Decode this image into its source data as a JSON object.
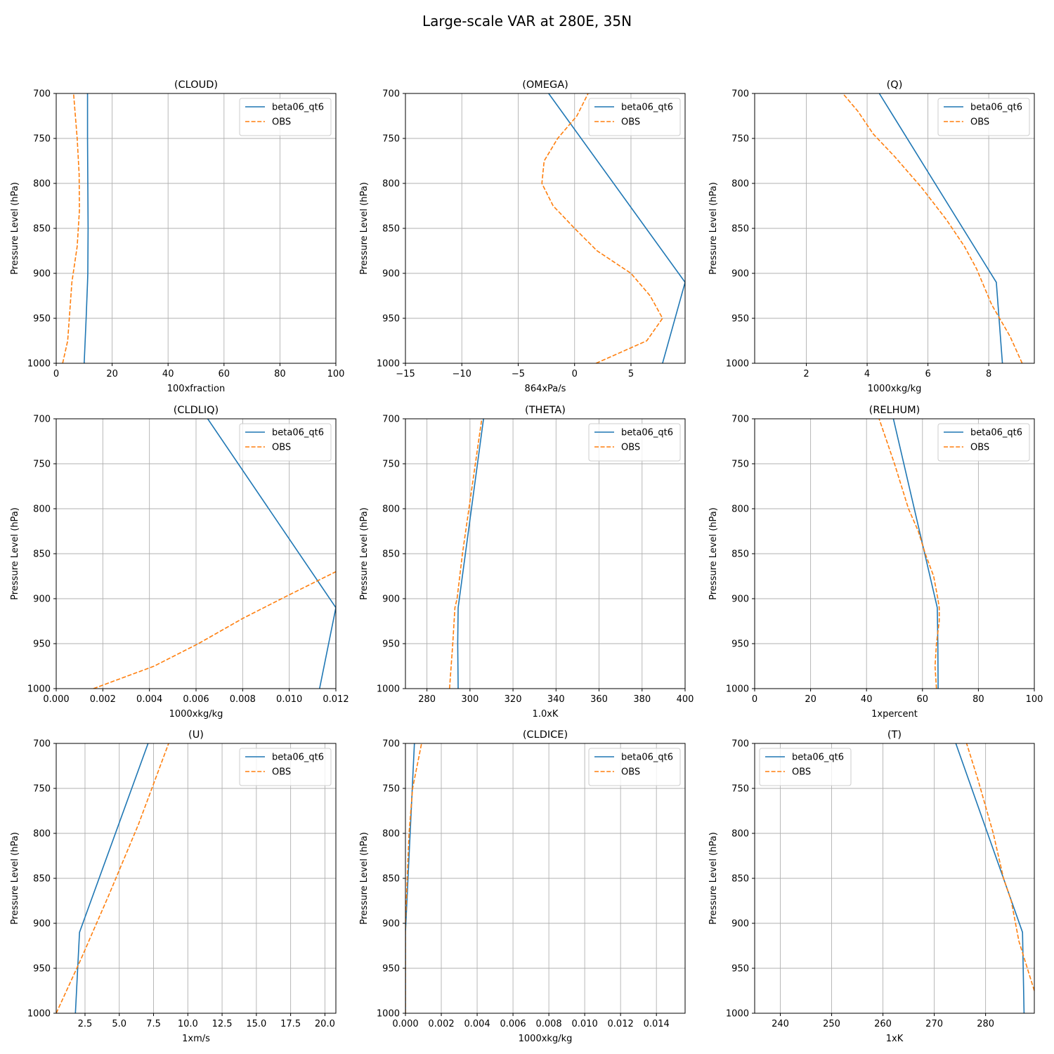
{
  "figure": {
    "title": "Large-scale VAR at 280E, 35N",
    "colors": {
      "model": "#1f77b4",
      "obs": "#ff7f0e",
      "grid": "#b0b0b0"
    }
  },
  "chart_data": [
    {
      "type": "line",
      "title": "(CLOUD)",
      "xlabel": "100xfraction",
      "ylabel": "Pressure Level (hPa)",
      "xlim": [
        0,
        100
      ],
      "ylim": [
        1000,
        700
      ],
      "y_inverted": true,
      "xticks": [
        0,
        20,
        40,
        60,
        80,
        100
      ],
      "xtick_labels": [
        "0",
        "20",
        "40",
        "60",
        "80",
        "100"
      ],
      "yticks": [
        700,
        750,
        800,
        850,
        900,
        950,
        1000
      ],
      "ytick_labels": [
        "700",
        "750",
        "800",
        "850",
        "900",
        "950",
        "1000"
      ],
      "grid": true,
      "legend": "upper right",
      "series": [
        {
          "name": "beta06_qt6",
          "style": "solid",
          "x": [
            10,
            10.7,
            11.2,
            11.3,
            11.4,
            11.3,
            11.2,
            11.2
          ],
          "y": [
            1000,
            950,
            910,
            900,
            850,
            800,
            750,
            700
          ]
        },
        {
          "name": "OBS",
          "style": "dashed",
          "x": [
            2.3,
            4.1,
            5.6,
            7.5,
            8.3,
            8.2,
            7.5,
            6.2
          ],
          "y": [
            1000,
            975,
            910,
            870,
            830,
            790,
            750,
            700
          ]
        }
      ]
    },
    {
      "type": "line",
      "title": "(OMEGA)",
      "xlabel": "864xPa/s",
      "ylabel": "Pressure Level (hPa)",
      "xlim": [
        -15,
        9.8
      ],
      "ylim": [
        1000,
        700
      ],
      "y_inverted": true,
      "xticks": [
        -15,
        -10,
        -5,
        0,
        5
      ],
      "xtick_labels": [
        "−15",
        "−10",
        "−5",
        "0",
        "5"
      ],
      "yticks": [
        700,
        750,
        800,
        850,
        900,
        950,
        1000
      ],
      "ytick_labels": [
        "700",
        "750",
        "800",
        "850",
        "900",
        "950",
        "1000"
      ],
      "grid": true,
      "legend": "upper right",
      "series": [
        {
          "name": "beta06_qt6",
          "style": "solid",
          "x": [
            7.8,
            9.8,
            -2.3
          ],
          "y": [
            1000,
            910,
            700
          ]
        },
        {
          "name": "OBS",
          "style": "dashed",
          "x": [
            1.9,
            6.4,
            7.8,
            6.7,
            5.0,
            2.0,
            0.0,
            -1.9,
            -2.9,
            -2.7,
            -1.5,
            0.2,
            1.2
          ],
          "y": [
            1000,
            975,
            950,
            925,
            900,
            875,
            850,
            825,
            800,
            775,
            750,
            725,
            700
          ]
        }
      ]
    },
    {
      "type": "line",
      "title": "(Q)",
      "xlabel": "1000xkg/kg",
      "ylabel": "Pressure Level (hPa)",
      "xlim": [
        0.3,
        9.5
      ],
      "ylim": [
        1000,
        700
      ],
      "y_inverted": true,
      "xticks": [
        2,
        4,
        6,
        8
      ],
      "xtick_labels": [
        "2",
        "4",
        "6",
        "8"
      ],
      "yticks": [
        700,
        750,
        800,
        850,
        900,
        950,
        1000
      ],
      "ytick_labels": [
        "700",
        "750",
        "800",
        "850",
        "900",
        "950",
        "1000"
      ],
      "grid": true,
      "legend": "upper right",
      "series": [
        {
          "name": "beta06_qt6",
          "style": "solid",
          "x": [
            8.45,
            8.25,
            4.4
          ],
          "y": [
            1000,
            910,
            700
          ]
        },
        {
          "name": "OBS",
          "style": "dashed",
          "x": [
            9.1,
            8.7,
            8.1,
            7.6,
            7.2,
            6.6,
            5.8,
            4.9,
            4.2,
            3.7,
            3.2
          ],
          "y": [
            1000,
            970,
            935,
            895,
            870,
            840,
            805,
            770,
            745,
            720,
            700
          ]
        }
      ]
    },
    {
      "type": "line",
      "title": "(CLDLIQ)",
      "xlabel": "1000xkg/kg",
      "ylabel": "Pressure Level (hPa)",
      "xlim": [
        0.0,
        0.012
      ],
      "ylim": [
        1000,
        700
      ],
      "y_inverted": true,
      "xticks": [
        0.0,
        0.002,
        0.004,
        0.006,
        0.008,
        0.01,
        0.012
      ],
      "xtick_labels": [
        "0.000",
        "0.002",
        "0.004",
        "0.006",
        "0.008",
        "0.010",
        "0.012"
      ],
      "yticks": [
        700,
        750,
        800,
        850,
        900,
        950,
        1000
      ],
      "ytick_labels": [
        "700",
        "750",
        "800",
        "850",
        "900",
        "950",
        "1000"
      ],
      "grid": true,
      "legend": "upper right",
      "series": [
        {
          "name": "beta06_qt6",
          "style": "solid",
          "x": [
            0.0113,
            0.012,
            0.0065
          ],
          "y": [
            1000,
            910,
            700
          ]
        },
        {
          "name": "OBS",
          "style": "dashed",
          "x": [
            0.0016,
            0.0042,
            0.0061,
            0.008,
            0.0099,
            0.012
          ],
          "y": [
            1000,
            975,
            950,
            922,
            897,
            870
          ]
        }
      ]
    },
    {
      "type": "line",
      "title": "(THETA)",
      "xlabel": "1.0xK",
      "ylabel": "Pressure Level (hPa)",
      "xlim": [
        270,
        400
      ],
      "ylim": [
        1000,
        700
      ],
      "y_inverted": true,
      "xticks": [
        280,
        300,
        320,
        340,
        360,
        380,
        400
      ],
      "xtick_labels": [
        "280",
        "300",
        "320",
        "340",
        "360",
        "380",
        "400"
      ],
      "yticks": [
        700,
        750,
        800,
        850,
        900,
        950,
        1000
      ],
      "ytick_labels": [
        "700",
        "750",
        "800",
        "850",
        "900",
        "950",
        "1000"
      ],
      "grid": true,
      "legend": "upper right",
      "series": [
        {
          "name": "beta06_qt6",
          "style": "solid",
          "x": [
            294.5,
            294.3,
            294.5,
            306.3
          ],
          "y": [
            1000,
            950,
            910,
            700
          ]
        },
        {
          "name": "OBS",
          "style": "dashed",
          "x": [
            290.5,
            292.0,
            293.0,
            294.0,
            296.5,
            299.5,
            302.5,
            305.5
          ],
          "y": [
            1000,
            950,
            910,
            900,
            850,
            800,
            750,
            700
          ]
        }
      ]
    },
    {
      "type": "line",
      "title": "(RELHUM)",
      "xlabel": "1xpercent",
      "ylabel": "Pressure Level (hPa)",
      "xlim": [
        0,
        100
      ],
      "ylim": [
        1000,
        700
      ],
      "y_inverted": true,
      "xticks": [
        0,
        20,
        40,
        60,
        80,
        100
      ],
      "xtick_labels": [
        "0",
        "20",
        "40",
        "60",
        "80",
        "100"
      ],
      "yticks": [
        700,
        750,
        800,
        850,
        900,
        950,
        1000
      ],
      "ytick_labels": [
        "700",
        "750",
        "800",
        "850",
        "900",
        "950",
        "1000"
      ],
      "grid": true,
      "legend": "upper right",
      "series": [
        {
          "name": "beta06_qt6",
          "style": "solid",
          "x": [
            65.6,
            65.5,
            65.3,
            49.6
          ],
          "y": [
            1000,
            950,
            910,
            700
          ]
        },
        {
          "name": "OBS",
          "style": "dashed",
          "x": [
            65.0,
            64.5,
            65.0,
            66.0,
            66.0,
            65.5,
            64.0,
            61.0,
            58.5,
            55.0,
            50.0,
            44.5
          ],
          "y": [
            1000,
            975,
            950,
            925,
            910,
            900,
            875,
            850,
            825,
            800,
            750,
            700
          ]
        }
      ]
    },
    {
      "type": "line",
      "title": "(U)",
      "xlabel": "1xm/s",
      "ylabel": "Pressure Level (hPa)",
      "xlim": [
        0.4,
        20.8
      ],
      "ylim": [
        1000,
        700
      ],
      "y_inverted": true,
      "xticks": [
        2.5,
        5.0,
        7.5,
        10.0,
        12.5,
        15.0,
        17.5,
        20.0
      ],
      "xtick_labels": [
        "2.5",
        "5.0",
        "7.5",
        "10.0",
        "12.5",
        "15.0",
        "17.5",
        "20.0"
      ],
      "yticks": [
        700,
        750,
        800,
        850,
        900,
        950,
        1000
      ],
      "ytick_labels": [
        "700",
        "750",
        "800",
        "850",
        "900",
        "950",
        "1000"
      ],
      "grid": true,
      "legend": "upper right",
      "series": [
        {
          "name": "beta06_qt6",
          "style": "solid",
          "x": [
            1.8,
            2.1,
            7.1
          ],
          "y": [
            1000,
            910,
            700
          ]
        },
        {
          "name": "OBS",
          "style": "dashed",
          "x": [
            0.4,
            2.2,
            4.2,
            6.4,
            8.6
          ],
          "y": [
            1000,
            940,
            870,
            790,
            700
          ]
        }
      ]
    },
    {
      "type": "line",
      "title": "(CLDICE)",
      "xlabel": "1000xkg/kg",
      "ylabel": "Pressure Level (hPa)",
      "xlim": [
        0.0,
        0.0156
      ],
      "ylim": [
        1000,
        700
      ],
      "y_inverted": true,
      "xticks": [
        0.0,
        0.002,
        0.004,
        0.006,
        0.008,
        0.01,
        0.012,
        0.014
      ],
      "xtick_labels": [
        "0.000",
        "0.002",
        "0.004",
        "0.006",
        "0.008",
        "0.010",
        "0.012",
        "0.014"
      ],
      "yticks": [
        700,
        750,
        800,
        850,
        900,
        950,
        1000
      ],
      "ytick_labels": [
        "700",
        "750",
        "800",
        "850",
        "900",
        "950",
        "1000"
      ],
      "grid": true,
      "legend": "upper right",
      "series": [
        {
          "name": "beta06_qt6",
          "style": "solid",
          "x": [
            0.0,
            0.0,
            0.0005
          ],
          "y": [
            1000,
            910,
            700
          ]
        },
        {
          "name": "OBS",
          "style": "dashed",
          "x": [
            0.0,
            0.0,
            0.0001,
            0.0002,
            0.0004,
            0.0009
          ],
          "y": [
            1000,
            900,
            850,
            800,
            750,
            700
          ]
        }
      ]
    },
    {
      "type": "line",
      "title": "(T)",
      "xlabel": "1xK",
      "ylabel": "Pressure Level (hPa)",
      "xlim": [
        235,
        289.5
      ],
      "ylim": [
        1000,
        700
      ],
      "y_inverted": true,
      "xticks": [
        240,
        250,
        260,
        270,
        280
      ],
      "xtick_labels": [
        "240",
        "250",
        "260",
        "270",
        "280"
      ],
      "yticks": [
        700,
        750,
        800,
        850,
        900,
        950,
        1000
      ],
      "ytick_labels": [
        "700",
        "750",
        "800",
        "850",
        "900",
        "950",
        "1000"
      ],
      "grid": true,
      "legend": "upper left",
      "series": [
        {
          "name": "beta06_qt6",
          "style": "solid",
          "x": [
            287.5,
            287.2,
            274.2
          ],
          "y": [
            1000,
            910,
            700
          ]
        },
        {
          "name": "OBS",
          "style": "dashed",
          "x": [
            289.5,
            286.5,
            285.0,
            283.5,
            281.5,
            280.0,
            278.5,
            276.3
          ],
          "y": [
            975,
            920,
            875,
            850,
            800,
            770,
            740,
            700
          ]
        }
      ]
    }
  ]
}
